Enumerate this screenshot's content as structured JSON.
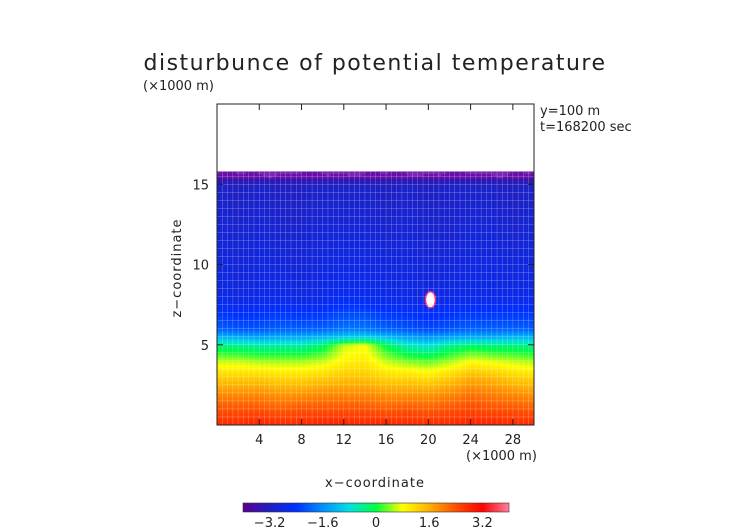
{
  "chart_data": {
    "type": "heatmap",
    "title": "disturbunce of potential temperature",
    "xlabel": "x−coordinate",
    "ylabel": "z−coordinate",
    "x_unit": "(×1000 m)",
    "y_unit": "(×1000 m)",
    "annotations": [
      "y=100 m",
      "t=168200 sec"
    ],
    "xlim": [
      0,
      30
    ],
    "ylim": [
      0,
      20
    ],
    "x_ticks": [
      4,
      8,
      12,
      16,
      20,
      24,
      28
    ],
    "y_ticks": [
      5,
      10,
      15
    ],
    "grid": true,
    "colorbar": {
      "range": [
        -4,
        4
      ],
      "ticks": [
        -3.2,
        -1.6,
        0,
        1.6,
        3.2
      ],
      "tick_labels": [
        "−3.2",
        "−1.6",
        "0",
        "1.6",
        "3.2"
      ],
      "colors": [
        "#5a0090",
        "#2020c0",
        "#0030ff",
        "#0090ff",
        "#00e0e0",
        "#00ff40",
        "#ffff00",
        "#ffb000",
        "#ff5000",
        "#ff0000",
        "#ff80a0"
      ]
    },
    "field": {
      "x": [
        0,
        2,
        4,
        6,
        8,
        10,
        12,
        14,
        16,
        18,
        20,
        22,
        24,
        26,
        28,
        30
      ],
      "z_levels": [
        0,
        1,
        2,
        3,
        4,
        5,
        5.5,
        6,
        8,
        12,
        15,
        15.6
      ],
      "levels_desc": "values at each z level (rows) for each x (cols)",
      "values": [
        [
          2.8,
          2.8,
          2.9,
          2.8,
          2.8,
          2.9,
          2.9,
          2.8,
          2.9,
          2.8,
          2.8,
          2.8,
          2.9,
          2.9,
          2.8,
          2.8
        ],
        [
          2.4,
          2.4,
          2.4,
          2.3,
          2.4,
          2.4,
          2.4,
          2.4,
          2.3,
          2.4,
          2.3,
          2.4,
          2.5,
          2.4,
          2.4,
          2.3
        ],
        [
          1.9,
          1.9,
          1.9,
          1.8,
          1.8,
          1.9,
          1.9,
          1.9,
          1.8,
          1.8,
          1.8,
          1.9,
          2.1,
          2.0,
          1.9,
          1.8
        ],
        [
          1.3,
          1.3,
          1.3,
          1.2,
          1.2,
          1.3,
          1.4,
          1.4,
          1.2,
          1.2,
          1.1,
          1.3,
          1.6,
          1.5,
          1.3,
          1.2
        ],
        [
          0.6,
          0.6,
          0.5,
          0.5,
          0.5,
          0.6,
          0.9,
          1.0,
          0.6,
          0.4,
          0.3,
          0.5,
          0.8,
          0.7,
          0.6,
          0.5
        ],
        [
          -0.3,
          -0.4,
          -0.5,
          -0.5,
          -0.5,
          -0.2,
          0.6,
          0.8,
          -0.1,
          -0.6,
          -0.8,
          -0.4,
          -0.2,
          -0.3,
          -0.3,
          -0.4
        ],
        [
          -1.2,
          -1.3,
          -1.4,
          -1.3,
          -1.3,
          -1.2,
          -1.0,
          -0.9,
          -1.1,
          -1.4,
          -1.5,
          -1.4,
          -1.3,
          -1.3,
          -1.2,
          -1.2
        ],
        [
          -2.0,
          -2.1,
          -2.1,
          -2.0,
          -2.0,
          -2.0,
          -1.8,
          -1.8,
          -2.0,
          -2.1,
          -2.2,
          -2.1,
          -2.0,
          -2.0,
          -2.0,
          -2.0
        ],
        [
          -2.7,
          -2.8,
          -2.7,
          -2.7,
          -2.8,
          -2.7,
          -2.6,
          -2.6,
          -2.7,
          -2.7,
          -2.8,
          -2.7,
          -2.7,
          -2.7,
          -2.7,
          -2.7
        ],
        [
          -2.9,
          -3.0,
          -2.9,
          -3.0,
          -3.0,
          -2.9,
          -2.9,
          -2.9,
          -3.0,
          -2.9,
          -3.0,
          -3.0,
          -2.9,
          -2.9,
          -3.0,
          -2.9
        ],
        [
          -3.1,
          -3.2,
          -3.1,
          -3.2,
          -3.2,
          -3.1,
          -3.1,
          -3.1,
          -3.2,
          -3.1,
          -3.2,
          -3.1,
          -3.1,
          -3.1,
          -3.2,
          -3.1
        ],
        [
          -3.8,
          -3.8,
          -3.8,
          -3.8,
          -3.8,
          -3.8,
          -3.8,
          -3.8,
          -3.8,
          -3.8,
          -3.8,
          -3.8,
          -3.8,
          -3.8,
          -3.8,
          -3.8
        ]
      ],
      "top_boundary_z": 15.7,
      "warm_anomaly": {
        "x": 20.2,
        "z": 7.8,
        "value": 4.0
      }
    }
  }
}
